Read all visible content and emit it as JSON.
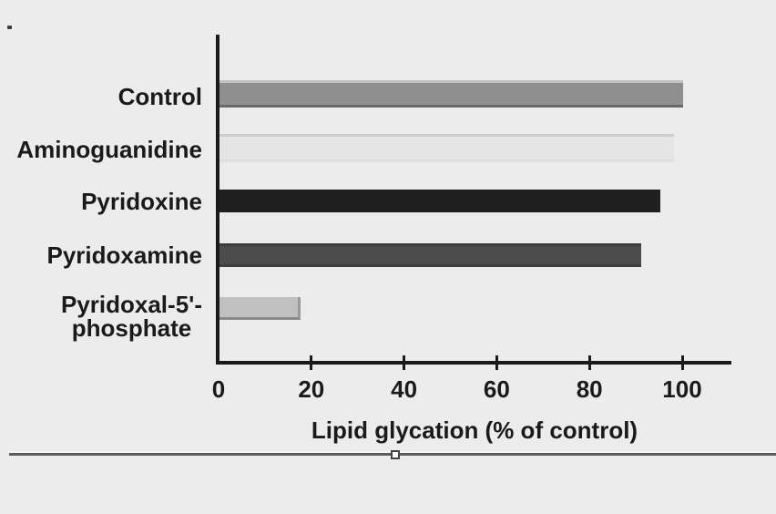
{
  "page": {
    "background": "#ececec",
    "text_color": "#1a1a1a"
  },
  "selection": {
    "handle_fill": "#ffffff",
    "handle_border": "#444444"
  },
  "divider": {
    "light_color": "#f5f5f5",
    "dark_color": "#5c5c5c"
  },
  "chart_data": {
    "type": "bar",
    "orientation": "horizontal",
    "title": "",
    "xlabel": "Lipid glycation (% of control)",
    "ylabel": "",
    "xlim": [
      0,
      110
    ],
    "xticks": [
      0,
      20,
      40,
      60,
      80,
      100
    ],
    "grid": false,
    "legend": false,
    "axis_color": "#1a1a1a",
    "categories": [
      "Control",
      "Aminoguanidine",
      "Pyridoxine",
      "Pyridoxamine",
      "Pyridoxal-5'-phosphate"
    ],
    "values": [
      100,
      98,
      95,
      91,
      17.5
    ],
    "bars": [
      {
        "label_lines": [
          "Control"
        ],
        "value": 100,
        "fill": "#8f8f8f",
        "edge_top": "#c3c3c3",
        "edge_bottom": "#696969"
      },
      {
        "label_lines": [
          "Aminoguanidine"
        ],
        "value": 98,
        "fill": "#e5e5e5",
        "edge_top": "#cdcdcd",
        "edge_bottom": "#dedede"
      },
      {
        "label_lines": [
          "Pyridoxine"
        ],
        "value": 95,
        "fill": "#1f1f1f"
      },
      {
        "label_lines": [
          "Pyridoxamine"
        ],
        "value": 91,
        "fill": "#4b4b4b",
        "edge_top": "#3d3d3d",
        "edge_bottom": "#3d3d3d"
      },
      {
        "label_lines": [
          "Pyridoxal-5'-",
          "phosphate"
        ],
        "value": 17.5,
        "fill": "#c0c0c0",
        "edge_bottom": "#8a8a8a",
        "edge_right": "#9a9a9a"
      }
    ]
  }
}
